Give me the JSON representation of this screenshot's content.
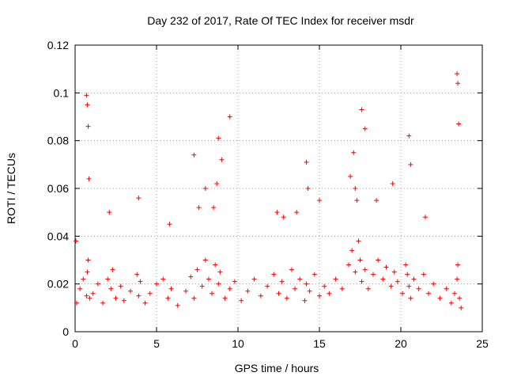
{
  "chart_data": {
    "type": "scatter",
    "title": "Day 232 of 2017, Rate Of TEC Index for receiver msdr",
    "xlabel": "GPS time / hours",
    "ylabel": "ROTI / TECUs",
    "xlim": [
      0,
      25
    ],
    "ylim": [
      0,
      0.12
    ],
    "x_ticks": [
      "0",
      "5",
      "10",
      "15",
      "20",
      "25"
    ],
    "y_ticks": [
      "0",
      "0.02",
      "0.04",
      "0.06",
      "0.08",
      "0.1",
      "0.12"
    ],
    "grid": true,
    "marker": "+",
    "series_color": "#ff0000",
    "series": [
      {
        "x": [
          0.1,
          0.3,
          0.5,
          0.7,
          0.75,
          0.8,
          0.9,
          1.1,
          1.4,
          1.7,
          2.0,
          2.2,
          2.3,
          2.5,
          2.8,
          3.0,
          3.4,
          3.8,
          3.9,
          4.0,
          4.3,
          4.6,
          5.0,
          5.4,
          5.7,
          5.9,
          6.3,
          6.8,
          7.1,
          7.3,
          7.5,
          7.8,
          8.0,
          8.2,
          8.4,
          8.6,
          8.8,
          8.9,
          9.2,
          9.5,
          9.8,
          10.2,
          10.6,
          11.0,
          11.4,
          11.8,
          12.2,
          12.5,
          12.7,
          13.0,
          13.3,
          13.5,
          13.8,
          14.1,
          14.2,
          14.4,
          14.7,
          15.0,
          15.3,
          15.6,
          16.0,
          16.4,
          16.8,
          17.0,
          17.2,
          17.4,
          17.5,
          17.6,
          17.8,
          18.0,
          18.3,
          18.6,
          18.9,
          19.1,
          19.4,
          19.6,
          19.8,
          20.1,
          20.3,
          20.4,
          20.5,
          20.6,
          20.8,
          21.1,
          21.4,
          21.7,
          22.0,
          22.4,
          22.8,
          23.1,
          23.3,
          23.45,
          23.5,
          23.6,
          23.7,
          0.05,
          0.7,
          0.75,
          0.8,
          0.85,
          2.1,
          3.9,
          5.8,
          7.3,
          7.6,
          8.0,
          8.5,
          8.7,
          8.8,
          9.0,
          9.5,
          12.4,
          12.8,
          13.6,
          14.2,
          14.3,
          15.0,
          16.9,
          17.1,
          17.2,
          17.3,
          17.6,
          17.8,
          18.5,
          19.5,
          20.5,
          20.6,
          21.5,
          23.45,
          23.5,
          23.55
        ],
        "y": [
          0.012,
          0.018,
          0.022,
          0.015,
          0.025,
          0.03,
          0.014,
          0.016,
          0.02,
          0.012,
          0.022,
          0.018,
          0.026,
          0.014,
          0.019,
          0.013,
          0.017,
          0.024,
          0.015,
          0.021,
          0.012,
          0.016,
          0.02,
          0.022,
          0.014,
          0.018,
          0.011,
          0.017,
          0.023,
          0.014,
          0.026,
          0.019,
          0.03,
          0.022,
          0.016,
          0.028,
          0.02,
          0.025,
          0.014,
          0.018,
          0.021,
          0.013,
          0.017,
          0.022,
          0.015,
          0.019,
          0.024,
          0.016,
          0.021,
          0.014,
          0.026,
          0.018,
          0.022,
          0.013,
          0.02,
          0.017,
          0.024,
          0.015,
          0.019,
          0.016,
          0.022,
          0.018,
          0.028,
          0.034,
          0.025,
          0.038,
          0.03,
          0.021,
          0.026,
          0.018,
          0.024,
          0.03,
          0.022,
          0.027,
          0.019,
          0.025,
          0.021,
          0.016,
          0.028,
          0.024,
          0.019,
          0.014,
          0.022,
          0.018,
          0.024,
          0.016,
          0.02,
          0.014,
          0.018,
          0.012,
          0.016,
          0.022,
          0.028,
          0.014,
          0.01,
          0.038,
          0.099,
          0.095,
          0.086,
          0.064,
          0.05,
          0.056,
          0.045,
          0.074,
          0.052,
          0.06,
          0.052,
          0.062,
          0.081,
          0.072,
          0.09,
          0.05,
          0.048,
          0.05,
          0.071,
          0.06,
          0.055,
          0.065,
          0.075,
          0.06,
          0.055,
          0.093,
          0.085,
          0.055,
          0.062,
          0.082,
          0.07,
          0.048,
          0.108,
          0.104,
          0.087
        ]
      }
    ]
  }
}
